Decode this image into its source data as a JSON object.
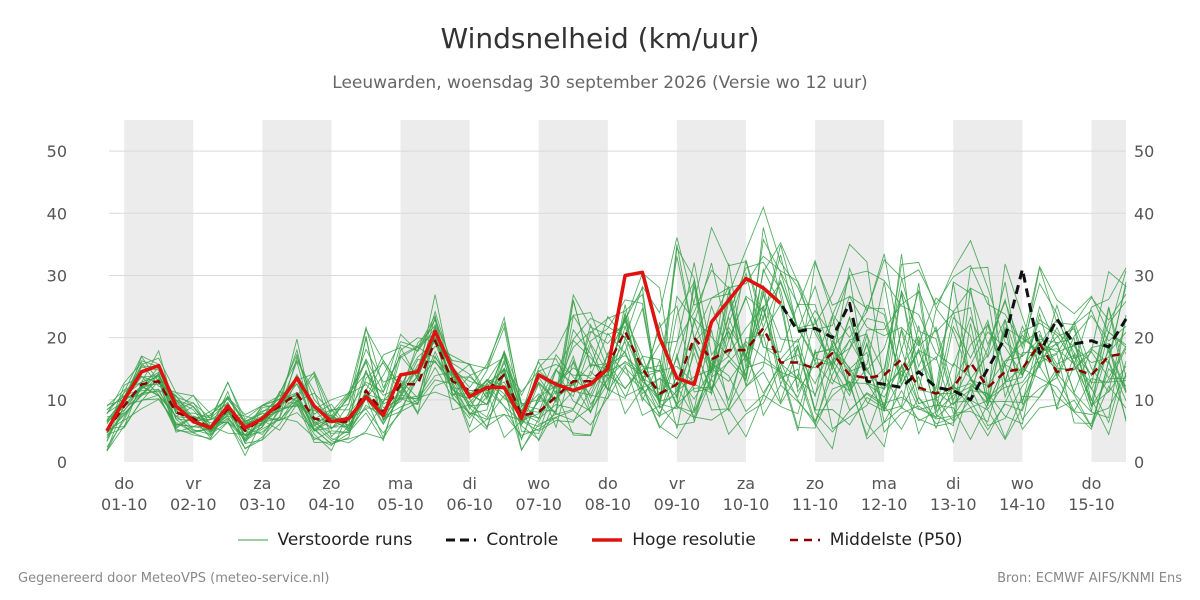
{
  "header": {
    "title": "Windsnelheid (km/uur)",
    "subtitle": "Leeuwarden, woensdag 30 september 2026 (Versie wo 12 uur)"
  },
  "legend": [
    {
      "label": "Verstoorde runs",
      "color": "#3aa14a",
      "style": "thin"
    },
    {
      "label": "Controle",
      "color": "#111111",
      "style": "dashed"
    },
    {
      "label": "Hoge resolutie",
      "color": "#e0120f",
      "style": "solid"
    },
    {
      "label": "Middelste (P50)",
      "color": "#8b0000",
      "style": "dashed"
    }
  ],
  "footer": {
    "left": "Gegenereerd door MeteoVPS (meteo-service.nl)",
    "right": "Bron: ECMWF AIFS/KNMI Ens"
  },
  "chart_data": {
    "type": "line",
    "xlabel": "",
    "ylabel": "",
    "ylim": [
      0,
      55
    ],
    "yticks": [
      0,
      10,
      20,
      30,
      40,
      50
    ],
    "xlim": [
      -0.22,
      14.5
    ],
    "grid": true,
    "x_ticks": [
      {
        "day": "do",
        "date": "01-10"
      },
      {
        "day": "vr",
        "date": "02-10"
      },
      {
        "day": "za",
        "date": "03-10"
      },
      {
        "day": "zo",
        "date": "04-10"
      },
      {
        "day": "ma",
        "date": "05-10"
      },
      {
        "day": "di",
        "date": "06-10"
      },
      {
        "day": "wo",
        "date": "07-10"
      },
      {
        "day": "do",
        "date": "08-10"
      },
      {
        "day": "vr",
        "date": "09-10"
      },
      {
        "day": "za",
        "date": "10-10"
      },
      {
        "day": "zo",
        "date": "11-10"
      },
      {
        "day": "ma",
        "date": "12-10"
      },
      {
        "day": "di",
        "date": "13-10"
      },
      {
        "day": "wo",
        "date": "14-10"
      },
      {
        "day": "do",
        "date": "15-10"
      }
    ],
    "shaded_days": [
      0,
      2,
      4,
      6,
      8,
      10,
      12,
      14
    ],
    "x": [
      -0.25,
      0,
      0.25,
      0.5,
      0.75,
      1,
      1.25,
      1.5,
      1.75,
      2,
      2.25,
      2.5,
      2.75,
      3,
      3.25,
      3.5,
      3.75,
      4,
      4.25,
      4.5,
      4.75,
      5,
      5.25,
      5.5,
      5.75,
      6,
      6.25,
      6.5,
      6.75,
      7,
      7.25,
      7.5,
      7.75,
      8,
      8.25,
      8.5,
      8.75,
      9,
      9.25,
      9.5,
      9.75,
      10,
      10.25,
      10.5,
      10.75,
      11,
      11.25,
      11.5,
      11.75,
      12,
      12.25,
      12.5,
      12.75,
      13,
      13.25,
      13.5,
      13.75,
      14,
      14.25,
      14.5
    ],
    "series": [
      {
        "name": "Controle",
        "color": "#111111",
        "dash": "9,6",
        "width": 3,
        "values": [
          5,
          10,
          14.5,
          15.5,
          9,
          6.5,
          5.5,
          9,
          5.5,
          7,
          9.5,
          13.5,
          9,
          6.5,
          7,
          10.5,
          7.5,
          14,
          14.5,
          21,
          15,
          10.5,
          12,
          12,
          7,
          14,
          12.5,
          11.5,
          12.5,
          15,
          30,
          30.5,
          20,
          13.5,
          12.5,
          22.5,
          26,
          29.5,
          28,
          25.5,
          21,
          21.5,
          20,
          25.5,
          13,
          12.5,
          12,
          14.5,
          12,
          11.5,
          10,
          15,
          20,
          31,
          17.5,
          23,
          19,
          19.5,
          18.5,
          23
        ]
      },
      {
        "name": "Hoge resolutie",
        "color": "#e0120f",
        "dash": "",
        "width": 3.5,
        "values": [
          5,
          10,
          14.5,
          15.5,
          9,
          6.5,
          5.5,
          9,
          5.5,
          7,
          9.5,
          13.5,
          9,
          6.5,
          7,
          10.5,
          7.5,
          14,
          14.5,
          21,
          15,
          10.5,
          12,
          12,
          7,
          14,
          12.5,
          11.5,
          12.5,
          15,
          30,
          30.5,
          20,
          13.5,
          12.5,
          22.5,
          26,
          29.5,
          28,
          25.5,
          null,
          null,
          null,
          null,
          null,
          null,
          null,
          null,
          null,
          null,
          null,
          null,
          null,
          null,
          null,
          null,
          null,
          null,
          null,
          null
        ]
      },
      {
        "name": "Middelste (P50)",
        "color": "#8b0000",
        "dash": "8,6",
        "width": 2.5,
        "values": [
          5,
          9,
          12.5,
          13,
          8,
          7,
          5.5,
          8.5,
          5,
          7,
          9,
          11,
          7,
          6.5,
          6.5,
          11.5,
          8,
          12.5,
          12.5,
          19.5,
          13,
          11.5,
          11.5,
          14,
          7.5,
          8,
          10.5,
          13,
          13,
          15.5,
          21,
          15,
          11,
          12.5,
          20,
          16.5,
          18,
          18,
          21.5,
          16,
          16,
          15,
          17.5,
          14,
          13.5,
          14,
          16.5,
          12,
          11,
          12,
          16,
          12,
          14.5,
          15,
          19,
          14.5,
          15,
          14,
          17,
          17.5
        ]
      }
    ],
    "ensemble": {
      "name": "Verstoorde runs",
      "color": "#3aa14a",
      "count": 30,
      "low": [
        0.5,
        5,
        8,
        8,
        4,
        3.5,
        2.5,
        4,
        1,
        3,
        5,
        6,
        3,
        1,
        2,
        4,
        3,
        6,
        5,
        10,
        6,
        4,
        4,
        3,
        1,
        2,
        3,
        3,
        3,
        4,
        5,
        6,
        4,
        2,
        2,
        5,
        4,
        2,
        3,
        4,
        2,
        3,
        2,
        3,
        2,
        2,
        2,
        3,
        2,
        2,
        2,
        3,
        2,
        3,
        3,
        3,
        2,
        3,
        2,
        2
      ],
      "high": [
        10,
        14,
        18,
        20,
        12,
        11,
        9,
        14,
        8,
        10,
        14,
        22,
        16,
        11,
        14,
        27,
        21,
        25,
        24,
        27,
        19,
        17,
        17,
        25,
        12,
        19,
        20,
        32,
        27,
        26,
        30,
        35,
        32,
        41,
        36,
        40,
        35,
        38,
        44,
        40,
        33,
        36,
        28,
        38,
        36,
        41,
        36,
        38,
        36,
        40,
        41,
        42,
        38,
        30,
        33,
        30,
        27,
        31,
        34,
        35
      ]
    }
  }
}
